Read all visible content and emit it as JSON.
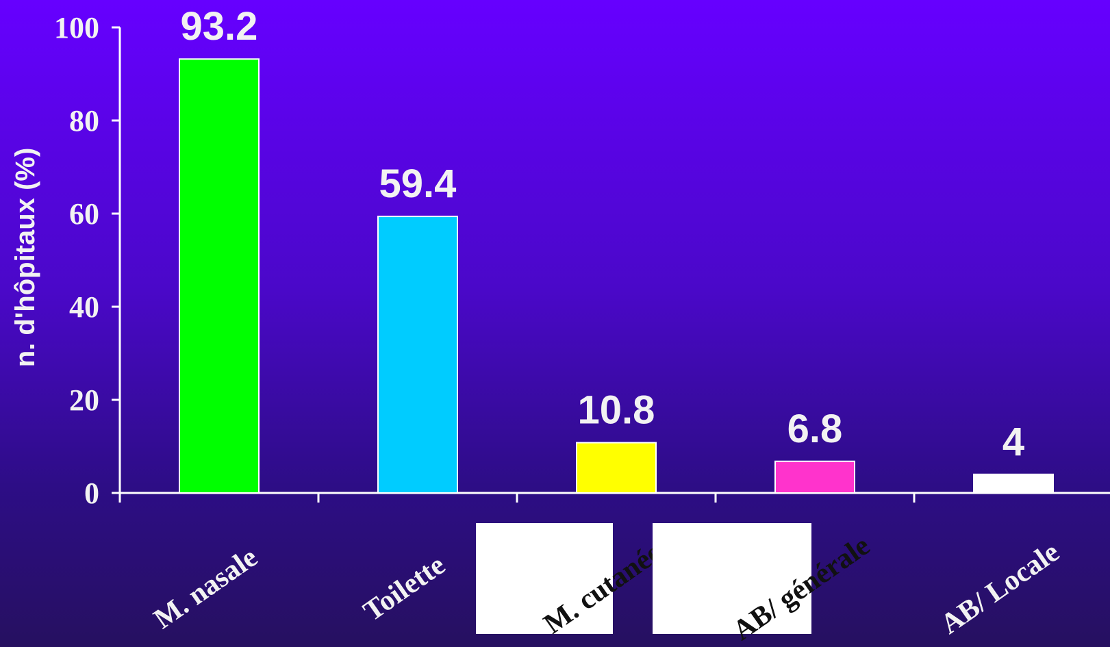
{
  "chart_data": {
    "type": "bar",
    "categories": [
      "M. nasale",
      "Toilette",
      "M. cutanée",
      "AB/ générale",
      "AB/ Locale"
    ],
    "values": [
      93.2,
      59.4,
      10.8,
      6.8,
      4
    ],
    "value_labels": [
      "93.2",
      "59.4",
      "10.8",
      "6.8",
      "4"
    ],
    "ylabel": "n. d'hôpitaux (%)",
    "ylim": [
      0,
      100
    ],
    "yticks": [
      0,
      20,
      40,
      60,
      80,
      100
    ],
    "ytick_labels": [
      "0",
      "20",
      "40",
      "60",
      "80",
      "100"
    ],
    "grid": false,
    "legend": "none",
    "bar_colors": [
      "#00ff00",
      "#00ccff",
      "#ffff00",
      "#ff33cc",
      "#ffffff"
    ],
    "bar_edge_color": "#ffffff",
    "boxed_categories": [
      false,
      false,
      true,
      true,
      false
    ]
  }
}
